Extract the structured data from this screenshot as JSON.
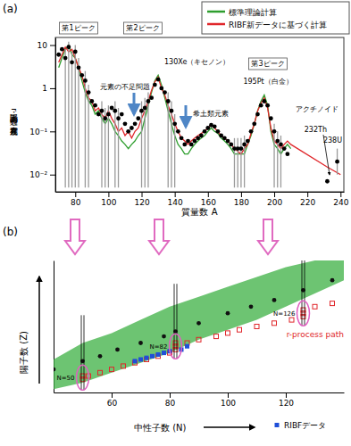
{
  "chart_data": [
    {
      "type": "line",
      "panel_label": "(a)",
      "log": "y",
      "grid": false,
      "legend": "top-right",
      "xlabel": "質量数 A",
      "ylabel": "太陽系・r過程の元素存在度",
      "xlim": [
        68,
        242
      ],
      "ylim": [
        0.004,
        15
      ],
      "xticks": [
        80,
        100,
        120,
        140,
        160,
        180,
        200,
        220,
        240
      ],
      "yticks": [
        10,
        1,
        {
          "value": 0.1,
          "label": "10⁻¹"
        },
        {
          "value": 0.01,
          "label": "10⁻²"
        }
      ],
      "annotations": [
        "第1ピーク",
        "第2ピーク",
        "第3ピーク",
        "130Xe（キセノン）",
        "元素の不足問題",
        "希土類元素",
        "195Pt（白金）",
        "アクチノイド",
        "232Th",
        "238U"
      ],
      "series": [
        {
          "name": "標準理論計算",
          "type": "line",
          "color": "#2e9e2e",
          "x": [
            70,
            72,
            74,
            76,
            78,
            80,
            82,
            84,
            86,
            88,
            90,
            92,
            94,
            96,
            98,
            100,
            102,
            104,
            106,
            108,
            110,
            112,
            114,
            116,
            118,
            120,
            122,
            124,
            126,
            128,
            130,
            132,
            134,
            136,
            138,
            140,
            142,
            144,
            146,
            148,
            150,
            152,
            154,
            156,
            158,
            160,
            162,
            164,
            166,
            168,
            170,
            172,
            174,
            176,
            178,
            180,
            182,
            184,
            186,
            188,
            190,
            192,
            194,
            196,
            198,
            200,
            202,
            204,
            206,
            208,
            210
          ],
          "values": [
            3,
            5,
            8,
            10,
            6,
            5,
            3,
            1.5,
            0.8,
            0.5,
            0.4,
            0.25,
            0.3,
            0.2,
            0.15,
            0.2,
            0.15,
            0.1,
            0.08,
            0.06,
            0.05,
            0.04,
            0.05,
            0.06,
            0.08,
            0.1,
            0.2,
            0.4,
            0.8,
            1.5,
            2,
            1.2,
            0.6,
            0.3,
            0.15,
            0.08,
            0.05,
            0.04,
            0.03,
            0.03,
            0.04,
            0.05,
            0.06,
            0.07,
            0.08,
            0.1,
            0.12,
            0.1,
            0.09,
            0.07,
            0.06,
            0.05,
            0.04,
            0.03,
            0.03,
            0.03,
            0.03,
            0.05,
            0.08,
            0.15,
            0.3,
            0.5,
            0.7,
            0.4,
            0.1,
            0.05,
            0.04,
            0.03,
            0.04,
            0.05,
            0.04
          ]
        },
        {
          "name": "RIBF新データに基づく計算",
          "type": "line",
          "color": "#e0262a",
          "x": [
            70,
            72,
            74,
            76,
            78,
            80,
            82,
            84,
            86,
            88,
            90,
            92,
            94,
            96,
            98,
            100,
            102,
            104,
            106,
            108,
            110,
            112,
            114,
            116,
            118,
            120,
            122,
            124,
            126,
            128,
            130,
            132,
            134,
            136,
            138,
            140,
            142,
            144,
            146,
            148,
            150,
            152,
            154,
            156,
            158,
            160,
            162,
            164,
            166,
            168,
            170,
            172,
            174,
            176,
            178,
            180,
            182,
            184,
            186,
            188,
            190,
            192,
            194,
            196,
            198,
            200,
            202,
            204,
            206,
            208,
            210,
            232,
            240
          ],
          "values": [
            4,
            6,
            9,
            7,
            8,
            5,
            3,
            2,
            1,
            0.6,
            0.5,
            0.3,
            0.35,
            0.25,
            0.2,
            0.3,
            0.2,
            0.15,
            0.1,
            0.12,
            0.08,
            0.1,
            0.07,
            0.1,
            0.12,
            0.2,
            0.3,
            0.5,
            0.9,
            1.4,
            1.8,
            1.0,
            0.7,
            0.4,
            0.25,
            0.15,
            0.1,
            0.07,
            0.06,
            0.05,
            0.06,
            0.07,
            0.08,
            0.09,
            0.1,
            0.12,
            0.14,
            0.12,
            0.1,
            0.08,
            0.07,
            0.06,
            0.05,
            0.04,
            0.035,
            0.03,
            0.04,
            0.05,
            0.09,
            0.15,
            0.3,
            0.45,
            0.6,
            0.35,
            0.12,
            0.06,
            0.05,
            0.04,
            0.05,
            0.06,
            0.05,
            0.015,
            0.01
          ]
        },
        {
          "type": "scatter",
          "color": "#000000",
          "marker": "circle",
          "x": [
            70,
            72,
            74,
            76,
            78,
            80,
            82,
            84,
            86,
            88,
            90,
            92,
            94,
            96,
            98,
            100,
            102,
            104,
            106,
            108,
            110,
            112,
            114,
            116,
            118,
            120,
            122,
            124,
            126,
            128,
            130,
            132,
            134,
            136,
            138,
            140,
            142,
            144,
            146,
            148,
            150,
            152,
            154,
            156,
            158,
            160,
            162,
            164,
            166,
            168,
            170,
            172,
            174,
            176,
            178,
            180,
            182,
            184,
            186,
            188,
            190,
            192,
            194,
            196,
            198,
            200,
            202,
            204,
            206,
            208,
            232,
            238
          ],
          "values": [
            6,
            8,
            5,
            9,
            4,
            7,
            3,
            2,
            1.5,
            0.8,
            0.5,
            0.4,
            0.25,
            0.3,
            0.2,
            0.25,
            0.35,
            0.3,
            0.2,
            0.25,
            0.15,
            0.1,
            0.12,
            0.15,
            0.2,
            0.3,
            0.35,
            0.5,
            0.6,
            1.2,
            1.6,
            1.0,
            0.8,
            0.5,
            0.3,
            0.15,
            0.1,
            0.07,
            0.05,
            0.06,
            0.05,
            0.06,
            0.07,
            0.08,
            0.1,
            0.12,
            0.14,
            0.13,
            0.1,
            0.08,
            0.07,
            0.06,
            0.05,
            0.04,
            0.04,
            0.04,
            0.05,
            0.06,
            0.1,
            0.15,
            0.25,
            0.4,
            0.5,
            0.4,
            0.2,
            0.1,
            0.06,
            0.05,
            0.04,
            0.03,
            0.007,
            0.02
          ],
          "error_low": [
            null,
            null,
            0.005,
            0.005,
            0.005,
            0.005,
            0.005,
            null,
            0.005,
            0.005,
            null,
            null,
            null,
            0.005,
            0.005,
            0.005,
            null,
            0.005,
            0.005,
            null,
            null,
            null,
            null,
            null,
            null,
            0.005,
            0.005,
            0.005,
            null,
            null,
            null,
            null,
            null,
            0.005,
            0.005,
            0.005,
            null,
            null,
            null,
            null,
            null,
            null,
            null,
            null,
            null,
            null,
            null,
            null,
            null,
            null,
            null,
            null,
            null,
            0.005,
            0.005,
            0.005,
            0.005,
            null,
            null,
            null,
            null,
            null,
            null,
            null,
            null,
            0.005,
            0.005,
            0.005,
            null,
            null,
            null,
            0.01
          ],
          "error_high": [
            null,
            null,
            8,
            12,
            7,
            10,
            5,
            null,
            2.5,
            1.2,
            null,
            null,
            null,
            0.5,
            0.35,
            0.4,
            null,
            0.5,
            0.35,
            null,
            null,
            null,
            null,
            null,
            null,
            0.5,
            0.6,
            0.8,
            null,
            null,
            null,
            null,
            null,
            0.8,
            0.5,
            0.25,
            null,
            null,
            null,
            null,
            null,
            null,
            null,
            null,
            null,
            null,
            null,
            null,
            null,
            null,
            null,
            null,
            null,
            0.07,
            0.07,
            0.07,
            0.08,
            null,
            null,
            null,
            null,
            null,
            null,
            null,
            null,
            0.15,
            0.1,
            0.08,
            null,
            null,
            null,
            0.04
          ]
        }
      ]
    },
    {
      "type": "scatter",
      "panel_label": "(b)",
      "tick_labels": "x",
      "xlabel": "中性子数 (N)",
      "ylabel": "陽子数 (Z)",
      "xlim": [
        40,
        140
      ],
      "ylim": [
        20,
        100
      ],
      "xticks": [
        60,
        80,
        100,
        120
      ],
      "magic_numbers": [
        50,
        82,
        126
      ],
      "magic_labels": [
        "N=50",
        "N=82",
        "N=126"
      ],
      "series": [
        {
          "type": "area",
          "color": "#3cb043",
          "x": [
            40,
            50,
            60,
            70,
            80,
            90,
            100,
            110,
            120,
            130,
            140
          ],
          "lower": [
            22,
            26,
            32,
            38,
            44,
            52,
            58,
            64,
            72,
            80,
            88
          ],
          "upper": [
            40,
            50,
            56,
            64,
            72,
            78,
            84,
            90,
            96,
            100,
            100
          ]
        },
        {
          "type": "scatter",
          "color": "#111111",
          "marker": "circle",
          "x": [
            40,
            50,
            56,
            62,
            70,
            78,
            82,
            90,
            100,
            108,
            116,
            126,
            136
          ],
          "values": [
            34,
            39,
            42,
            46,
            50,
            54,
            57,
            62,
            68,
            72,
            76,
            82,
            88
          ]
        },
        {
          "name": "r-process path",
          "type": "scatter",
          "color": "#e0262a",
          "marker": "open-square",
          "x": [
            50,
            50,
            52,
            56,
            60,
            64,
            68,
            72,
            76,
            80,
            82,
            82,
            82,
            86,
            90,
            96,
            100,
            104,
            110,
            116,
            122,
            126,
            126,
            126,
            130,
            136
          ],
          "values": [
            28,
            30,
            30,
            32,
            34,
            36,
            38,
            40,
            42,
            44,
            46,
            48,
            50,
            50,
            52,
            54,
            56,
            58,
            60,
            62,
            64,
            66,
            68,
            70,
            72,
            74
          ]
        },
        {
          "name": "RIBFデータ",
          "type": "scatter",
          "color": "#1f4fd8",
          "marker": "square",
          "x": [
            68,
            70,
            72,
            74,
            76,
            78,
            80,
            84,
            86
          ],
          "values": [
            39,
            40,
            41,
            42,
            43,
            44,
            45,
            46,
            48
          ]
        }
      ]
    }
  ]
}
